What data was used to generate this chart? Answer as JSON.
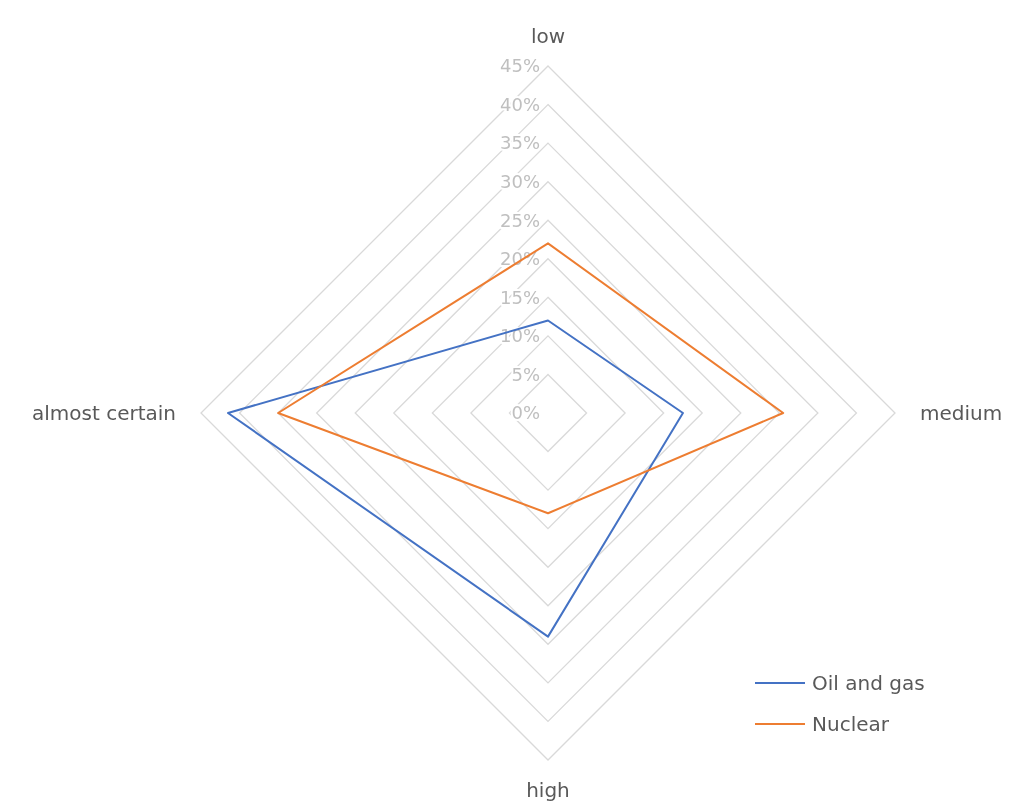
{
  "chart_data": {
    "type": "radar",
    "categories": [
      "low",
      "medium",
      "high",
      "almost certain"
    ],
    "series": [
      {
        "name": "Oil and gas",
        "color": "#4472c4",
        "values": [
          12,
          17.5,
          29,
          41.5
        ]
      },
      {
        "name": "Nuclear",
        "color": "#ed7d31",
        "values": [
          22,
          30.5,
          13,
          35
        ]
      }
    ],
    "ylim": [
      0,
      45
    ],
    "yticks": [
      {
        "value": 0,
        "label": "0%"
      },
      {
        "value": 5,
        "label": "5%"
      },
      {
        "value": 10,
        "label": "10%"
      },
      {
        "value": 15,
        "label": "15%"
      },
      {
        "value": 20,
        "label": "20%"
      },
      {
        "value": 25,
        "label": "25%"
      },
      {
        "value": 30,
        "label": "30%"
      },
      {
        "value": 35,
        "label": "35%"
      },
      {
        "value": 40,
        "label": "40%"
      },
      {
        "value": 45,
        "label": "45%"
      }
    ],
    "grid": true,
    "legend": "bottom right",
    "marker": "none",
    "line_style": "solid"
  }
}
